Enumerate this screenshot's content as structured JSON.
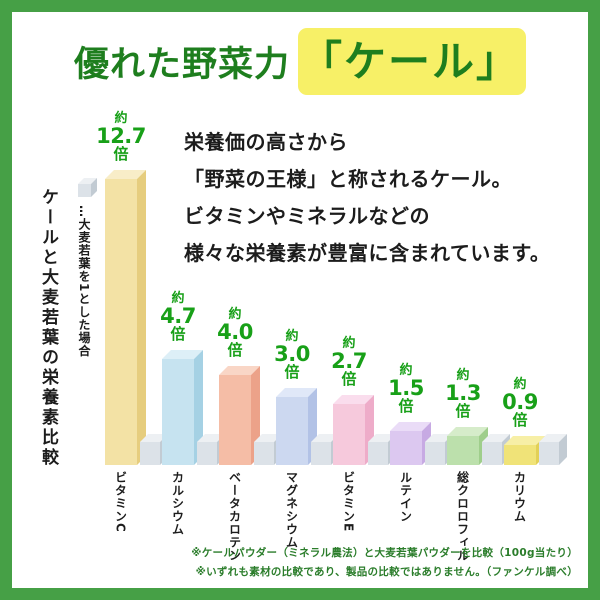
{
  "title": {
    "prefix": "優れた野菜力",
    "highlight": "「ケール」"
  },
  "side_heading": "ケールと大麦若葉の栄養素比較",
  "legend": {
    "cube_note": "…大麦若葉を1とした場合"
  },
  "description_lines": [
    "栄養価の高さから",
    "「野菜の王様」と称されるケール。",
    "ビタミンやミネラルなどの",
    "様々な栄養素が豊富に含まれています。"
  ],
  "chart_data": {
    "type": "bar",
    "title": "ケールと大麦若葉の栄養素比較",
    "subtitle": "大麦若葉を1とした場合",
    "categories": [
      "ビタミンC",
      "カルシウム",
      "ベータカロテン",
      "マグネシウム",
      "ビタミンE",
      "ルテイン",
      "総クロロフィル",
      "カリウム"
    ],
    "values": [
      12.7,
      4.7,
      4.0,
      3.0,
      2.7,
      1.5,
      1.3,
      0.9
    ],
    "value_labels": [
      "12.7",
      "4.7",
      "4.0",
      "3.0",
      "2.7",
      "1.5",
      "1.3",
      "0.9"
    ],
    "value_prefix": "約",
    "value_suffix": "倍",
    "reference_value": 1,
    "ylim": [
      0,
      13
    ],
    "grid": false,
    "legend_position": "left",
    "bar_colors": [
      "#f3e2a5",
      "#c6e3f0",
      "#f5bda6",
      "#ccd8f0",
      "#f6c9dc",
      "#dcc8f0",
      "#bce0ac",
      "#f0e378"
    ],
    "bar_side_colors": [
      "#e6cd7e",
      "#a5d1e4",
      "#eca289",
      "#b2c2e6",
      "#eeacc9",
      "#c7aae3",
      "#9fce8b",
      "#e2d056"
    ],
    "bar_top_colors": [
      "#f8edc8",
      "#ddeff7",
      "#f9d6c6",
      "#e0e8f8",
      "#fadded",
      "#eadcf7",
      "#d6ecca",
      "#f7efa6"
    ],
    "reference_cube_colors": {
      "front": "#dce2e8",
      "side": "#c2cbd3",
      "top": "#edf0f3"
    }
  },
  "footnotes": [
    "※ケールパウダー（ミネラル農法）と大麦若葉パウダーを比較（100g当たり）",
    "※いずれも素材の比較であり、製品の比較ではありません。（ファンケル調べ）"
  ],
  "colors": {
    "frame": "#46a046",
    "title_green": "#1e7e1e",
    "value_green": "#18a018",
    "note_green": "#2b7d2b",
    "highlight_yellow": "#f7f067",
    "text_black": "#1c1c1c"
  }
}
